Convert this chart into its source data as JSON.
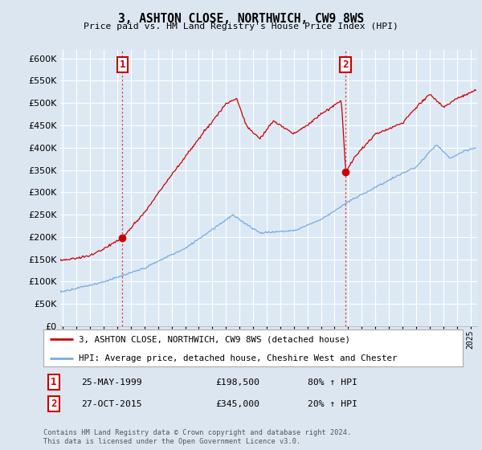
{
  "title": "3, ASHTON CLOSE, NORTHWICH, CW9 8WS",
  "subtitle": "Price paid vs. HM Land Registry's House Price Index (HPI)",
  "ylim": [
    0,
    620000
  ],
  "yticks": [
    0,
    50000,
    100000,
    150000,
    200000,
    250000,
    300000,
    350000,
    400000,
    450000,
    500000,
    550000,
    600000
  ],
  "fig_bg_color": "#dce6f1",
  "plot_bg_color": "#dce9f5",
  "grid_color": "#c8d4e0",
  "sale1_date": 1999.38,
  "sale1_price": 198500,
  "sale1_label": "1",
  "sale2_date": 2015.82,
  "sale2_price": 345000,
  "sale2_label": "2",
  "red_line_color": "#cc0000",
  "blue_line_color": "#7aabe0",
  "vline_color": "#dd4444",
  "legend_entries": [
    "3, ASHTON CLOSE, NORTHWICH, CW9 8WS (detached house)",
    "HPI: Average price, detached house, Cheshire West and Chester"
  ],
  "table_rows": [
    {
      "label": "1",
      "date": "25-MAY-1999",
      "price": "£198,500",
      "hpi": "80% ↑ HPI"
    },
    {
      "label": "2",
      "date": "27-OCT-2015",
      "price": "£345,000",
      "hpi": "20% ↑ HPI"
    }
  ],
  "footer": "Contains HM Land Registry data © Crown copyright and database right 2024.\nThis data is licensed under the Open Government Licence v3.0.",
  "xmin": 1994.8,
  "xmax": 2025.5
}
